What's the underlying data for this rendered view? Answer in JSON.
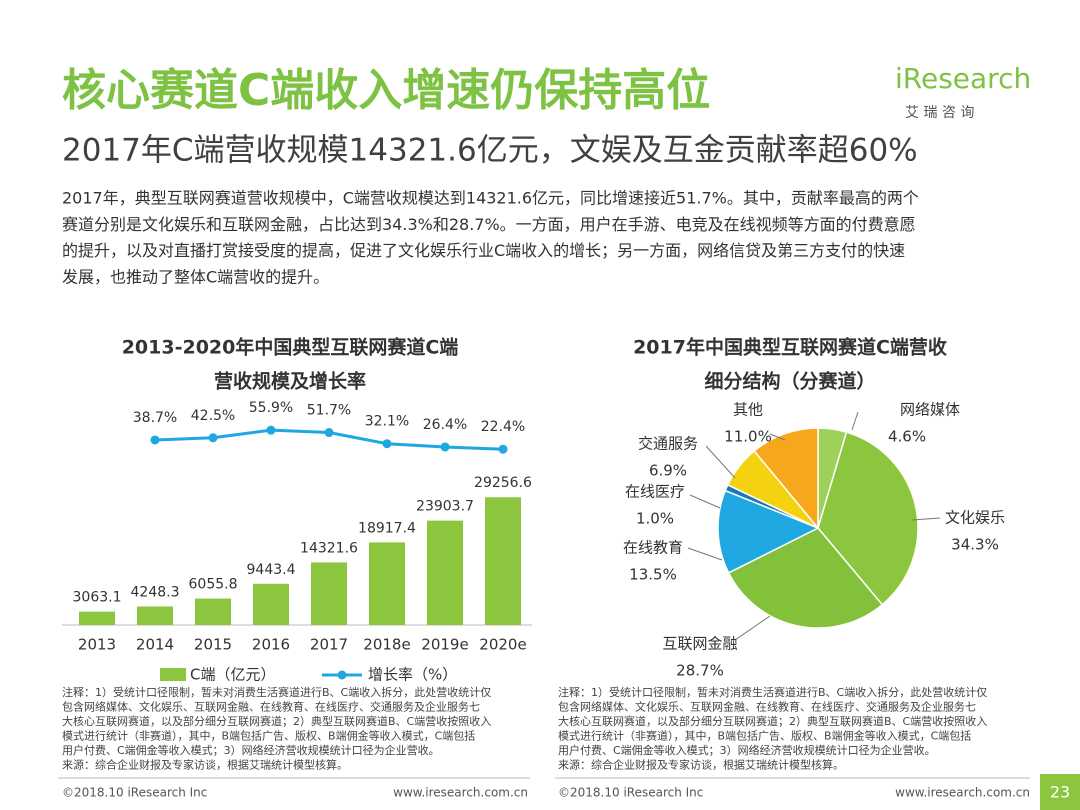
{
  "header": {
    "title": "核心赛道C端收入增速仍保持高位",
    "subtitle": "2017年C端营收规模14321.6亿元，文娱及互金贡献率超60%",
    "paragraph": [
      "2017年，典型互联网赛道营收规模中，C端营收规模达到14321.6亿元，同比增速接近51.7%。其中，贡献率最高的两个",
      "赛道分别是文化娱乐和互联网金融，占比达到34.3%和28.7%。一方面，用户在手游、电竞及在线视频等方面的付费意愿",
      "的提升，以及对直播打赏接受度的提高，促进了文化娱乐行业C端收入的增长；另一方面，网络信贷及第三方支付的快速",
      "发展，也推动了整体C端营收的提升。"
    ],
    "logo": "iResearch",
    "logo_sub": "艾 瑞 咨 询"
  },
  "chart_data": [
    {
      "type": "bar_line",
      "title": [
        "2013-2020年中国典型互联网赛道C端",
        "营收规模及增长率"
      ],
      "categories": [
        "2013",
        "2014",
        "2015",
        "2016",
        "2017",
        "2018e",
        "2019e",
        "2020e"
      ],
      "series": [
        {
          "name": "C端（亿元）",
          "type": "bar",
          "color": "#8cc63f",
          "values": [
            3063.1,
            4248.3,
            6055.8,
            9443.4,
            14321.6,
            18917.4,
            23903.7,
            29256.6
          ]
        },
        {
          "name": "增长率（%）",
          "type": "line",
          "axis": "y2",
          "color": "#1ea7e0",
          "values": [
            null,
            38.7,
            42.5,
            55.9,
            51.7,
            32.1,
            26.4,
            22.4
          ],
          "value_labels": [
            null,
            "38.7%",
            "42.5%",
            "55.9%",
            "51.7%",
            "32.1%",
            "26.4%",
            "22.4%"
          ]
        }
      ],
      "ylim": [
        0,
        30000
      ],
      "y2lim": [
        0,
        100
      ],
      "legend": "bottom",
      "notes": [
        "注释：1）受统计口径限制，暂未对消费生活赛道进行B、C端收入拆分，此处营收统计仅",
        "包含网络媒体、文化娱乐、互联网金融、在线教育、在线医疗、交通服务及企业服务七",
        "大核心互联网赛道，以及部分细分互联网赛道；2）典型互联网赛道B、C端营收按照收入",
        "模式进行统计（非赛道），其中，B端包括广告、版权、B端佣金等收入模式，C端包括",
        "用户付费、C端佣金等收入模式；3）网络经济营收规模统计口径为企业营收。",
        "来源：综合企业财报及专家访谈，根据艾瑞统计模型核算。"
      ]
    },
    {
      "type": "pie",
      "title": [
        "2017年中国典型互联网赛道C端营收",
        "细分结构（分赛道）"
      ],
      "categories": [
        "网络媒体",
        "文化娱乐",
        "互联网金融",
        "在线教育",
        "在线医疗",
        "交通服务",
        "其他"
      ],
      "values": [
        4.6,
        34.3,
        28.7,
        13.5,
        1.0,
        6.9,
        11.0
      ],
      "value_labels": [
        "4.6%",
        "34.3%",
        "28.7%",
        "13.5%",
        "1.0%",
        "6.9%",
        "11.0%"
      ],
      "colors": [
        "#9dd15a",
        "#8cc63f",
        "#84c13b",
        "#1ea7e0",
        "#1c79b8",
        "#f5d20f",
        "#f6a71c"
      ],
      "notes": [
        "注释：1）受统计口径限制，暂未对消费生活赛道进行B、C端收入拆分，此处营收统计仅",
        "包含网络媒体、文化娱乐、互联网金融、在线教育、在线医疗、交通服务及企业服务七",
        "大核心互联网赛道，以及部分细分互联网赛道；2）典型互联网赛道B、C端营收按照收入",
        "模式进行统计（非赛道），其中，B端包括广告、版权、B端佣金等收入模式，C端包括",
        "用户付费、C端佣金等收入模式；3）网络经济营收规模统计口径为企业营收。",
        "来源：综合企业财报及专家访谈，根据艾瑞统计模型核算。"
      ]
    }
  ],
  "footer": {
    "copyright": "©2018.10 iResearch Inc",
    "url": "www.iresearch.com.cn",
    "page": "23"
  }
}
